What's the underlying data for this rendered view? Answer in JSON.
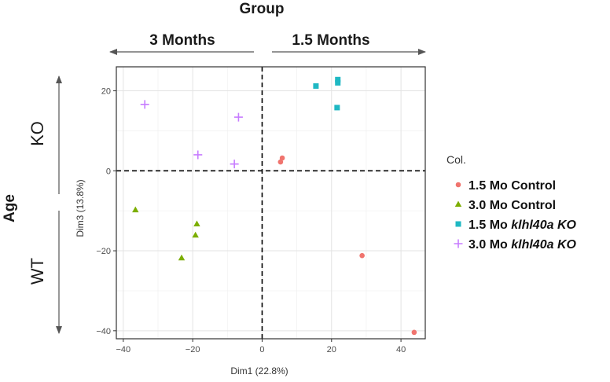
{
  "header": {
    "group_label": "Group",
    "left_label": "3 Months",
    "right_label": "1.5 Months",
    "age_label": "Age",
    "top_side_label": "KO",
    "bottom_side_label": "WT"
  },
  "chart_data": {
    "type": "scatter",
    "title": "",
    "xlabel": "Dim1 (22.8%)",
    "ylabel": "Dim3 (13.8%)",
    "xlim": [
      -42,
      47
    ],
    "ylim": [
      -42,
      26
    ],
    "xticks": [
      -40,
      -20,
      0,
      20,
      40
    ],
    "yticks": [
      -40,
      -20,
      0,
      20
    ],
    "grid": true,
    "reference_lines": [
      {
        "axis": "x",
        "value": 0,
        "style": "dashed"
      },
      {
        "axis": "y",
        "value": 0,
        "style": "dashed"
      }
    ],
    "legend": {
      "title": "Col.",
      "position": "right",
      "entries": [
        {
          "plain": "1.5 Mo Control",
          "italic": ""
        },
        {
          "plain": "3.0 Mo Control",
          "italic": ""
        },
        {
          "plain": "1.5 Mo ",
          "italic": "klhl40a KO"
        },
        {
          "plain": "3.0 Mo ",
          "italic": "klhl40a KO"
        }
      ]
    },
    "series": [
      {
        "name": "1.5 Mo Control",
        "marker": "circle",
        "color": "#F0746E",
        "points": [
          [
            5.8,
            3.2
          ],
          [
            5.3,
            2.2
          ],
          [
            28.8,
            -21.2
          ],
          [
            43.8,
            -40.4
          ]
        ]
      },
      {
        "name": "3.0 Mo Control",
        "marker": "triangle",
        "color": "#7CAE00",
        "points": [
          [
            -36.5,
            -9.8
          ],
          [
            -18.8,
            -13.3
          ],
          [
            -19.2,
            -16.1
          ],
          [
            -23.2,
            -21.8
          ]
        ]
      },
      {
        "name": "1.5 Mo klhl40a KO",
        "marker": "square",
        "color": "#1FB8C3",
        "points": [
          [
            15.5,
            21.2
          ],
          [
            21.8,
            22.8
          ],
          [
            21.8,
            22.0
          ],
          [
            21.6,
            15.8
          ]
        ]
      },
      {
        "name": "3.0 Mo klhl40a KO",
        "marker": "plus",
        "color": "#C77CFF",
        "points": [
          [
            -33.8,
            16.6
          ],
          [
            -6.8,
            13.4
          ],
          [
            -18.5,
            4.0
          ],
          [
            -8.0,
            1.7
          ]
        ]
      }
    ]
  }
}
